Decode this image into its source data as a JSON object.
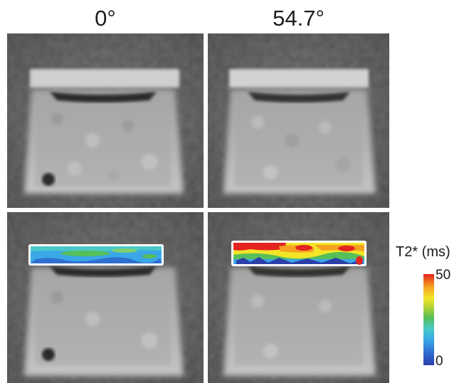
{
  "columns": [
    {
      "label": "0°"
    },
    {
      "label": "54.7°"
    }
  ],
  "colorbar": {
    "label": "T2* (ms)",
    "max": "50",
    "min": "0",
    "colors": [
      "#2b3fa8",
      "#3aa7e6",
      "#56bf5a",
      "#f3e526",
      "#f5a221",
      "#e3241f"
    ]
  },
  "panels": [
    {
      "name": "mri-0deg",
      "overlay": false
    },
    {
      "name": "mri-54.7deg",
      "overlay": false
    },
    {
      "name": "mri-0deg-t2star-map",
      "overlay": true
    },
    {
      "name": "mri-54.7deg-t2star-map",
      "overlay": true
    }
  ]
}
